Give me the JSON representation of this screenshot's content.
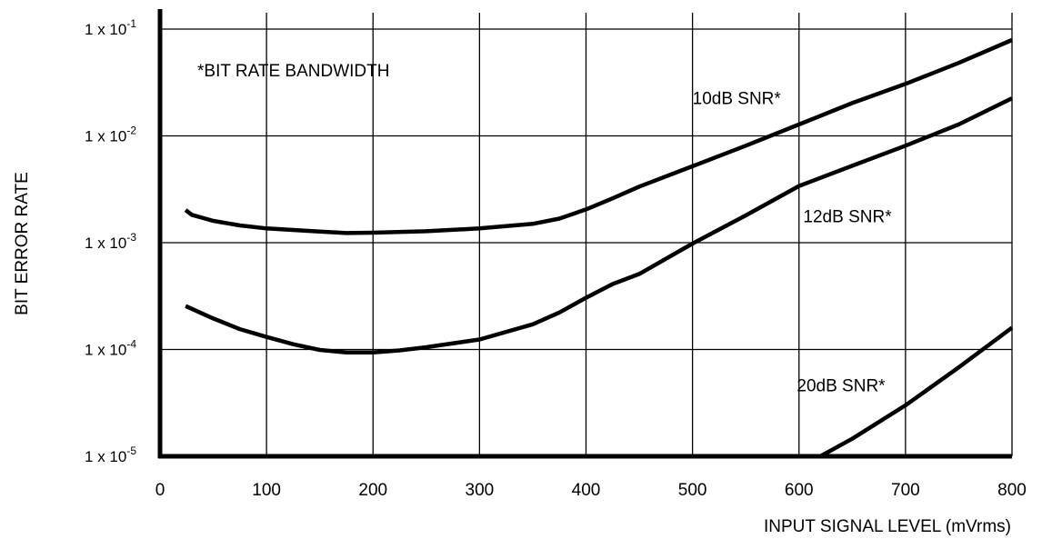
{
  "chart_data": {
    "type": "line",
    "title": "",
    "xlabel": "INPUT SIGNAL LEVEL (mVrms)",
    "ylabel": "BIT ERROR RATE",
    "xlim": [
      0,
      800
    ],
    "ylim": [
      1e-05,
      0.1
    ],
    "yscale": "log",
    "grid": true,
    "x_ticks": [
      0,
      100,
      200,
      300,
      400,
      500,
      600,
      700,
      800
    ],
    "y_ticks": [
      {
        "value": 1e-05,
        "base": "1 x 10",
        "exp": "-5"
      },
      {
        "value": 0.0001,
        "base": "1 x 10",
        "exp": "-4"
      },
      {
        "value": 0.001,
        "base": "1 x 10",
        "exp": "-3"
      },
      {
        "value": 0.01,
        "base": "1 x 10",
        "exp": "-2"
      },
      {
        "value": 0.1,
        "base": "1 x 10",
        "exp": "-1"
      }
    ],
    "note": "*BIT RATE BANDWIDTH",
    "series": [
      {
        "name": "10dB SNR*",
        "points": [
          [
            24,
            0.00202
          ],
          [
            30,
            0.00182
          ],
          [
            50,
            0.0016
          ],
          [
            75,
            0.00145
          ],
          [
            100,
            0.00136
          ],
          [
            150,
            0.00127
          ],
          [
            175,
            0.00123
          ],
          [
            200,
            0.00124
          ],
          [
            250,
            0.00128
          ],
          [
            300,
            0.00136
          ],
          [
            350,
            0.0015
          ],
          [
            375,
            0.00168
          ],
          [
            400,
            0.00205
          ],
          [
            425,
            0.0026
          ],
          [
            450,
            0.00335
          ],
          [
            500,
            0.0052
          ],
          [
            550,
            0.0081
          ],
          [
            600,
            0.0128
          ],
          [
            650,
            0.0203
          ],
          [
            700,
            0.0307
          ],
          [
            750,
            0.0482
          ],
          [
            800,
            0.079
          ]
        ],
        "label_at": [
          500,
          0.0198
        ]
      },
      {
        "name": "12dB SNR*",
        "points": [
          [
            24,
            0.000255
          ],
          [
            50,
            0.000195
          ],
          [
            75,
            0.000155
          ],
          [
            100,
            0.000131
          ],
          [
            125,
            0.000112
          ],
          [
            150,
            9.9e-05
          ],
          [
            175,
            9.4e-05
          ],
          [
            200,
            9.4e-05
          ],
          [
            225,
            9.8e-05
          ],
          [
            250,
            0.000105
          ],
          [
            300,
            0.000124
          ],
          [
            350,
            0.000172
          ],
          [
            375,
            0.000222
          ],
          [
            400,
            0.000305
          ],
          [
            425,
            0.00041
          ],
          [
            450,
            0.00051
          ],
          [
            500,
            0.00098
          ],
          [
            550,
            0.0018
          ],
          [
            600,
            0.0034
          ],
          [
            650,
            0.00525
          ],
          [
            700,
            0.0081
          ],
          [
            750,
            0.0128
          ],
          [
            800,
            0.0225
          ]
        ],
        "label_at": [
          604,
          0.00156
        ]
      },
      {
        "name": "20dB SNR*",
        "points": [
          [
            620,
            1e-05
          ],
          [
            650,
            1.46e-05
          ],
          [
            700,
            3e-05
          ],
          [
            750,
            6.8e-05
          ],
          [
            800,
            0.00016
          ]
        ],
        "label_at": [
          598,
          4.06e-05
        ]
      }
    ]
  }
}
